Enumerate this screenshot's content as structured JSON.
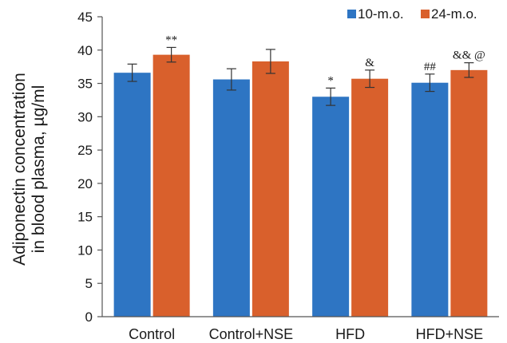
{
  "chart_data": {
    "type": "bar",
    "title": "",
    "xlabel": "",
    "ylabel": [
      "Adiponectin concentration",
      "in blood plasma, µg/ml"
    ],
    "ylim": [
      0,
      45
    ],
    "yticks": [
      0,
      5,
      10,
      15,
      20,
      25,
      30,
      35,
      40,
      45
    ],
    "grid": false,
    "legend_position": "top-right",
    "categories": [
      "Control",
      "Control+NSE",
      "HFD",
      "HFD+NSE"
    ],
    "series": [
      {
        "name": "10-m.o.",
        "color": "#2E75C3",
        "values": [
          36.6,
          35.6,
          33.0,
          35.1
        ],
        "errors": [
          1.3,
          1.6,
          1.3,
          1.3
        ],
        "annotations": [
          "",
          "",
          "*",
          "##"
        ]
      },
      {
        "name": "24-m.o.",
        "color": "#D9602C",
        "values": [
          39.3,
          38.3,
          35.7,
          37.0
        ],
        "errors": [
          1.1,
          1.8,
          1.3,
          1.1
        ],
        "annotations": [
          "**",
          "",
          "&",
          "&& @"
        ]
      }
    ]
  }
}
